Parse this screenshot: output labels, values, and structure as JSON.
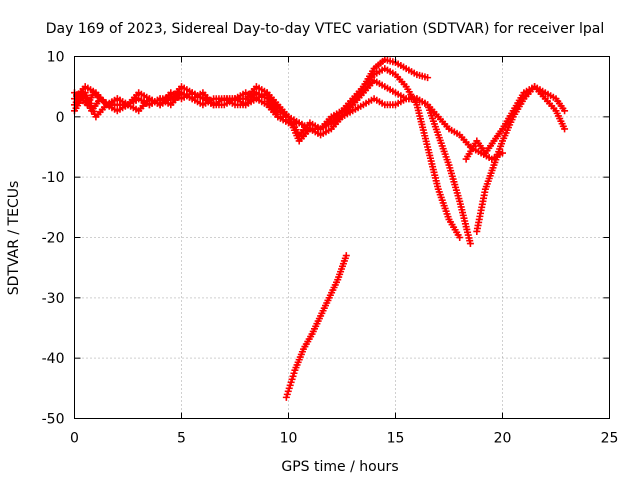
{
  "chart_data": {
    "type": "scatter",
    "title": "Day 169 of 2023, Sidereal Day-to-day VTEC variation (SDTVAR) for receiver lpal",
    "xlabel": "GPS time / hours",
    "ylabel": "SDTVAR / TECUs",
    "xlim": [
      0,
      25
    ],
    "ylim": [
      -50,
      10
    ],
    "xticks": [
      0,
      5,
      10,
      15,
      20,
      25
    ],
    "yticks": [
      -50,
      -40,
      -30,
      -20,
      -10,
      0,
      10
    ],
    "grid": true,
    "marker": "+",
    "color": "#ff0000",
    "series": [
      {
        "name": "track-1",
        "x": [
          0,
          0.3,
          0.6,
          0.9,
          1.2,
          1.6,
          2.0,
          2.5,
          3.0,
          3.5,
          4.0,
          4.5,
          5.0,
          5.5,
          6.0,
          6.5,
          7.0,
          7.5,
          8.0,
          8.5,
          9.0,
          9.5,
          10.0,
          10.5,
          11.0,
          11.5,
          12.0,
          12.5,
          13.0,
          13.5,
          14.0,
          14.5,
          15.0,
          15.5,
          16.0,
          16.5
        ],
        "y": [
          4,
          3,
          2,
          4,
          3,
          2,
          3,
          2,
          3,
          2,
          3,
          2,
          4,
          3,
          2,
          3,
          3,
          3,
          3,
          5,
          4,
          1,
          0,
          -1,
          -2,
          -3,
          -2,
          0,
          2,
          5,
          8,
          9.5,
          9,
          8,
          7,
          6.5
        ]
      },
      {
        "name": "track-2",
        "x": [
          0,
          0.4,
          0.8,
          1.2,
          1.6,
          2.0,
          2.5,
          3.0,
          3.5,
          4.0,
          4.5,
          5.0,
          5.5,
          6.0,
          6.5,
          7.0,
          7.5,
          8.0,
          8.5,
          9.0,
          9.5,
          10.0,
          10.5,
          11.0,
          11.5,
          12.0,
          12.5,
          13.0,
          13.5,
          14.0,
          14.5,
          15.0,
          15.5,
          16.0,
          16.5,
          17.0,
          17.5,
          18.0
        ],
        "y": [
          2,
          4,
          1,
          3,
          2,
          2,
          2,
          3,
          2,
          3,
          3,
          5,
          4,
          3,
          2,
          3,
          3,
          2,
          4,
          3,
          0,
          -1,
          -1,
          -2,
          -2,
          0,
          1,
          3,
          5,
          7,
          8,
          7,
          5,
          2,
          -5,
          -12,
          -17,
          -20
        ]
      },
      {
        "name": "track-3",
        "x": [
          0,
          0.5,
          1.0,
          1.5,
          2.0,
          2.5,
          3.0,
          3.5,
          4.0,
          4.5,
          5.0,
          5.5,
          6.0,
          6.5,
          7.0,
          7.5,
          8.0,
          8.5,
          9.0,
          9.5,
          10.0,
          10.5,
          11.0,
          11.5,
          12.0,
          12.5,
          13.0,
          13.5,
          14.0,
          14.5,
          15.0,
          15.5,
          16.0,
          16.5,
          17.0,
          17.5,
          18.0,
          18.5
        ],
        "y": [
          3,
          5,
          4,
          2,
          3,
          2,
          4,
          3,
          2,
          3,
          4,
          3,
          4,
          2,
          3,
          2,
          2,
          3,
          4,
          2,
          0,
          -3,
          -1,
          -2,
          -1,
          0,
          1,
          2,
          3,
          2,
          2,
          3,
          3,
          2,
          -3,
          -8,
          -14,
          -21
        ]
      },
      {
        "name": "track-4",
        "x": [
          0,
          0.5,
          1.0,
          1.5,
          2.0,
          2.5,
          3.0,
          3.5,
          4.0,
          4.5,
          5.0,
          5.5,
          6.0,
          6.5,
          7.0,
          7.5,
          8.0,
          8.5,
          9.0,
          9.5,
          10.0,
          10.5,
          11.0,
          11.5,
          12.0,
          12.5,
          13.0,
          13.5,
          14.0,
          14.5,
          15.0,
          15.5,
          16.0,
          16.5,
          17.0,
          17.5,
          18.0,
          18.5,
          19.0,
          19.5,
          20.0
        ],
        "y": [
          1,
          4,
          0,
          2,
          1,
          2,
          1,
          3,
          2,
          4,
          3,
          4,
          3,
          2,
          2,
          3,
          4,
          3,
          2,
          0,
          0,
          -4,
          -2,
          -2,
          -1,
          1,
          2,
          4,
          6,
          5,
          4,
          3,
          3,
          2,
          0,
          -2,
          -3,
          -5,
          -6,
          -7,
          -6
        ]
      },
      {
        "name": "track-5",
        "x": [
          18.8,
          19.2,
          19.6,
          20.0,
          20.5,
          21.0,
          21.5,
          22.0,
          22.5,
          22.9
        ],
        "y": [
          -19,
          -12,
          -8,
          -4,
          0,
          3,
          5,
          4,
          3,
          1
        ]
      },
      {
        "name": "track-6",
        "x": [
          18.3,
          18.8,
          19.2,
          19.6,
          20.0,
          20.5,
          21.0,
          21.5,
          22.0,
          22.5,
          22.9
        ],
        "y": [
          -7,
          -4,
          -6,
          -4,
          -2,
          1,
          4,
          5,
          3,
          1,
          -2
        ]
      },
      {
        "name": "track-7",
        "x": [
          9.9,
          10.3,
          10.7,
          11.1,
          11.5,
          11.9,
          12.3,
          12.7
        ],
        "y": [
          -46.5,
          -42,
          -38.5,
          -36,
          -33,
          -30,
          -27,
          -23
        ]
      }
    ]
  }
}
